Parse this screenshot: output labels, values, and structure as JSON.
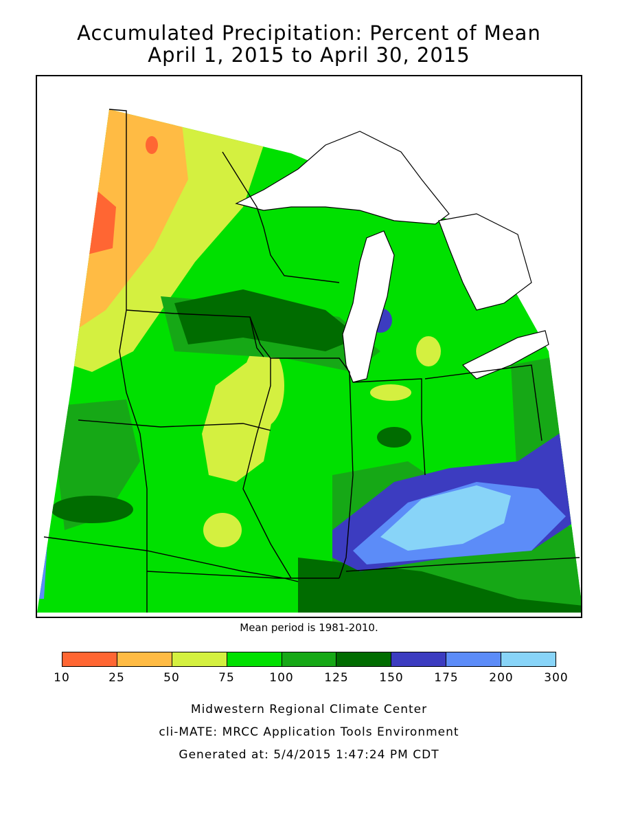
{
  "title": {
    "line1": "Accumulated Precipitation: Percent of Mean",
    "line2": "April 1, 2015 to April 30, 2015"
  },
  "mean_note": "Mean period is 1981-2010.",
  "legend": {
    "ticks": [
      "10",
      "25",
      "50",
      "75",
      "100",
      "125",
      "150",
      "175",
      "200",
      "300"
    ],
    "colors": [
      "#ff6633",
      "#ffbb44",
      "#d4f040",
      "#00e000",
      "#16a816",
      "#006c00",
      "#3c3cc0",
      "#5c8cf8",
      "#88d4f8"
    ]
  },
  "credits": {
    "line1": "Midwestern Regional Climate Center",
    "line2": "cli-MATE: MRCC Application Tools Environment",
    "line3": "Generated at: 5/4/2015 1:47:24 PM CDT"
  },
  "map": {
    "region": "Midwest",
    "lakes_color": "#ffffff",
    "boundary_color": "#000000"
  }
}
